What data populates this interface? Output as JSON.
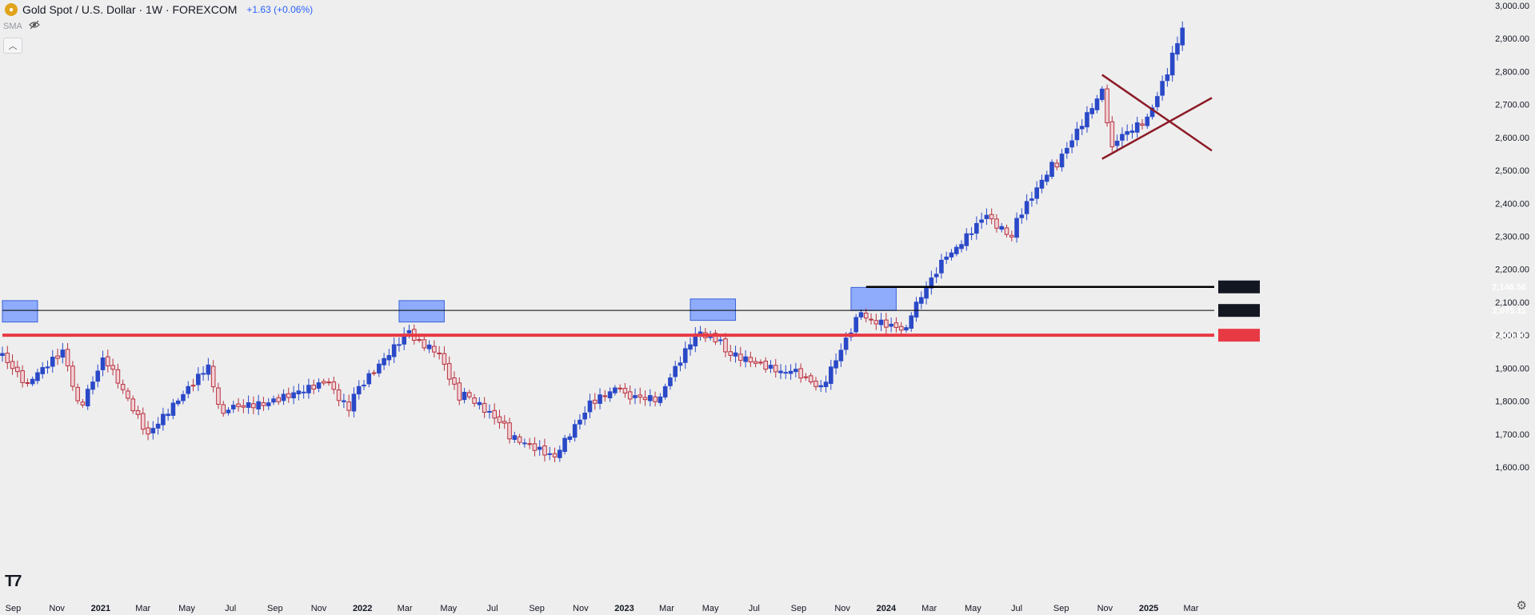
{
  "legend": {
    "symbol": "Gold Spot / U.S. Dollar · 1W · FOREXCOM",
    "change": "+1.63 (+0.06%)",
    "indicator": "SMA",
    "icons": [
      "gold-coin-icon",
      "eye-hidden-icon",
      "chevron-up-icon"
    ]
  },
  "colors": {
    "up": "#2a49c8",
    "down": "#b83240",
    "up_fill": "#2a49c8",
    "down_fill": "#f2d2d6",
    "support_line": "#e83a44",
    "zone": "#6f94ff",
    "zone_border": "#3a63d8",
    "triangle": "#8c1a26"
  },
  "chart_data": {
    "type": "candlestick",
    "title": "Gold Spot / U.S. Dollar · 1W · FOREXCOM",
    "y_axis": {
      "ticks": [
        1600,
        1700,
        1800,
        1900,
        2000,
        2100,
        2200,
        2300,
        2400,
        2500,
        2600,
        2700,
        2800,
        2900,
        3000
      ],
      "tick_labels": [
        "1,600.00",
        "1,700.00",
        "1,800.00",
        "1,900.00",
        "2,000.00",
        "2,100.00",
        "2,200.00",
        "2,300.00",
        "2,400.00",
        "2,500.00",
        "2,600.00",
        "2,700.00",
        "2,800.00",
        "2,900.00",
        "3,000.00"
      ],
      "range": [
        1555,
        3015
      ]
    },
    "x_axis": {
      "labels": [
        {
          "text": "Sep",
          "date": "2020-09-01"
        },
        {
          "text": "Nov",
          "date": "2020-11-01"
        },
        {
          "text": "2021",
          "date": "2021-01-01",
          "bold": true
        },
        {
          "text": "Mar",
          "date": "2021-03-01"
        },
        {
          "text": "May",
          "date": "2021-05-01"
        },
        {
          "text": "Jul",
          "date": "2021-07-01"
        },
        {
          "text": "Sep",
          "date": "2021-09-01"
        },
        {
          "text": "Nov",
          "date": "2021-11-01"
        },
        {
          "text": "2022",
          "date": "2022-01-01",
          "bold": true
        },
        {
          "text": "Mar",
          "date": "2022-03-01"
        },
        {
          "text": "May",
          "date": "2022-05-01"
        },
        {
          "text": "Jul",
          "date": "2022-07-01"
        },
        {
          "text": "Sep",
          "date": "2022-09-01"
        },
        {
          "text": "Nov",
          "date": "2022-11-01"
        },
        {
          "text": "2023",
          "date": "2023-01-01",
          "bold": true
        },
        {
          "text": "Mar",
          "date": "2023-03-01"
        },
        {
          "text": "May",
          "date": "2023-05-01"
        },
        {
          "text": "Jul",
          "date": "2023-07-01"
        },
        {
          "text": "Sep",
          "date": "2023-09-01"
        },
        {
          "text": "Nov",
          "date": "2023-11-01"
        },
        {
          "text": "2024",
          "date": "2024-01-01",
          "bold": true
        },
        {
          "text": "Mar",
          "date": "2024-03-01"
        },
        {
          "text": "May",
          "date": "2024-05-01"
        },
        {
          "text": "Jul",
          "date": "2024-07-01"
        },
        {
          "text": "Sep",
          "date": "2024-09-01"
        },
        {
          "text": "Nov",
          "date": "2024-11-01"
        },
        {
          "text": "2025",
          "date": "2025-01-01",
          "bold": true
        },
        {
          "text": "Mar",
          "date": "2025-03-01"
        }
      ],
      "range": [
        "2020-08-17",
        "2025-03-30"
      ]
    },
    "anchors": [
      {
        "date": "2020-08-17",
        "close": 1950
      },
      {
        "date": "2020-09-21",
        "close": 1860
      },
      {
        "date": "2020-11-09",
        "close": 1950
      },
      {
        "date": "2020-11-30",
        "close": 1780
      },
      {
        "date": "2021-01-04",
        "close": 1940
      },
      {
        "date": "2021-03-08",
        "close": 1690
      },
      {
        "date": "2021-05-31",
        "close": 1900
      },
      {
        "date": "2021-06-21",
        "close": 1770
      },
      {
        "date": "2021-08-09",
        "close": 1780
      },
      {
        "date": "2021-11-15",
        "close": 1860
      },
      {
        "date": "2021-12-13",
        "close": 1790
      },
      {
        "date": "2022-03-07",
        "close": 2000
      },
      {
        "date": "2022-04-18",
        "close": 1950
      },
      {
        "date": "2022-05-16",
        "close": 1820
      },
      {
        "date": "2022-07-18",
        "close": 1710
      },
      {
        "date": "2022-09-26",
        "close": 1640
      },
      {
        "date": "2022-11-07",
        "close": 1770
      },
      {
        "date": "2022-12-26",
        "close": 1830
      },
      {
        "date": "2023-02-20",
        "close": 1820
      },
      {
        "date": "2023-04-10",
        "close": 2000
      },
      {
        "date": "2023-05-15",
        "close": 1970
      },
      {
        "date": "2023-08-14",
        "close": 1900
      },
      {
        "date": "2023-10-02",
        "close": 1830
      },
      {
        "date": "2023-11-27",
        "close": 2070
      },
      {
        "date": "2024-01-29",
        "close": 2030
      },
      {
        "date": "2024-03-25",
        "close": 2230
      },
      {
        "date": "2024-05-20",
        "close": 2370
      },
      {
        "date": "2024-06-24",
        "close": 2310
      },
      {
        "date": "2024-08-19",
        "close": 2500
      },
      {
        "date": "2024-10-28",
        "close": 2750
      },
      {
        "date": "2024-11-11",
        "close": 2570
      },
      {
        "date": "2024-12-23",
        "close": 2630
      },
      {
        "date": "2025-01-27",
        "close": 2810
      },
      {
        "date": "2025-02-17",
        "close": 2935
      }
    ],
    "level_lines": [
      {
        "price": 2146.56,
        "label": "2,146.56",
        "color": "#000000",
        "start_date": "2023-12-04"
      },
      {
        "price": 2075.11,
        "label": "2,075.11",
        "color": "#000000",
        "start_date": "2020-08-17"
      },
      {
        "price": 2000.0,
        "label": "2,000.00",
        "color": "#e83a44",
        "start_date": "2020-08-17"
      }
    ],
    "zones": [
      {
        "start": "2020-08-17",
        "end": "2020-10-05",
        "top": 2105,
        "bottom": 2040
      },
      {
        "start": "2022-02-21",
        "end": "2022-04-25",
        "top": 2105,
        "bottom": 2040
      },
      {
        "start": "2023-04-03",
        "end": "2023-06-05",
        "top": 2110,
        "bottom": 2045
      },
      {
        "start": "2023-11-13",
        "end": "2024-01-15",
        "top": 2145,
        "bottom": 2075
      }
    ],
    "triangle_lines": [
      {
        "from": {
          "date": "2024-10-28",
          "price": 2790
        },
        "to": {
          "date": "2025-03-30",
          "price": 2560
        }
      },
      {
        "from": {
          "date": "2024-10-28",
          "price": 2535
        },
        "to": {
          "date": "2025-03-30",
          "price": 2720
        }
      }
    ]
  }
}
